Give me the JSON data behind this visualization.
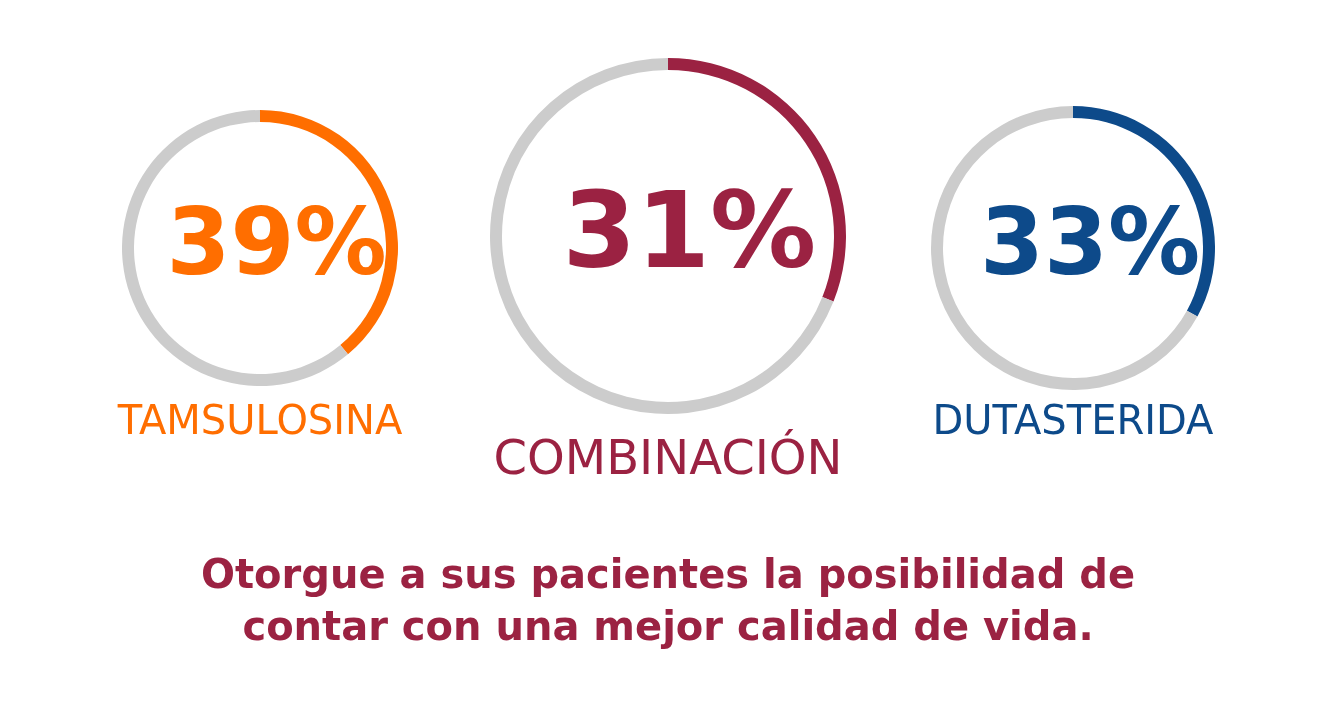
{
  "chart_data": [
    {
      "type": "donut",
      "title": "TAMSULOSINA",
      "categories": [
        null,
        null
      ],
      "values": [
        39,
        61
      ],
      "colors": [
        "#ff6e00",
        "#cccccc"
      ],
      "value_labels": [
        "39%",
        null
      ]
    },
    {
      "type": "donut",
      "title": "COMBINACIÓN",
      "categories": [
        null,
        null
      ],
      "values": [
        31,
        69
      ],
      "colors": [
        "#9b2242",
        "#cccccc"
      ],
      "value_labels": [
        "31%",
        null
      ]
    },
    {
      "type": "donut",
      "title": "DUTASTERIDA",
      "categories": [
        null,
        null
      ],
      "values": [
        33,
        67
      ],
      "colors": [
        "#0d4a8a",
        "#cccccc"
      ],
      "value_labels": [
        "33%",
        null
      ]
    },
    {
      "type": "other",
      "annotations": [
        "Otorgue a sus pacientes la posibilidad de contar con una mejor calidad de vida."
      ]
    }
  ]
}
